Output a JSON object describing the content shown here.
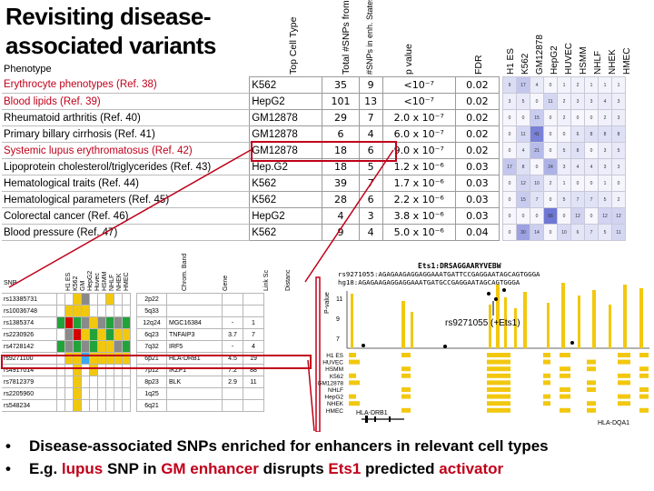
{
  "slide": {
    "title": "Revisiting disease-associated variants",
    "phenotype_header": "Phenotype",
    "column_headers": [
      "Top Cell Type",
      "Total #SNPs from Study",
      "#SNPs in enh. States 4 and 5",
      "p value",
      "FDR"
    ],
    "cell_type_headers": [
      "H1 ES",
      "K562",
      "GM12878",
      "HepG2",
      "HUVEC",
      "HSMM",
      "NHLF",
      "NHEK",
      "HMEC"
    ],
    "rows": [
      {
        "phenotype": "Erythrocyte phenotypes (Ref. 38)",
        "cell": "K562",
        "total": "35",
        "enh": "9",
        "p": "<10⁻⁷",
        "fdr": "0.02",
        "heat": [
          "9",
          "17",
          "4",
          "0",
          "1",
          "2",
          "1",
          "1",
          "1"
        ]
      },
      {
        "phenotype": "Blood lipids (Ref. 39)",
        "cell": "HepG2",
        "total": "101",
        "enh": "13",
        "p": "<10⁻⁷",
        "fdr": "0.02",
        "heat": [
          "3",
          "5",
          "0",
          "11",
          "2",
          "3",
          "3",
          "4",
          "3"
        ]
      },
      {
        "phenotype": "Rheumatoid arthritis (Ref. 40)",
        "cell": "GM12878",
        "total": "29",
        "enh": "7",
        "p": "2.0 x 10⁻⁷",
        "fdr": "0.02",
        "heat": [
          "0",
          "0",
          "15",
          "0",
          "2",
          "0",
          "0",
          "2",
          "3"
        ]
      },
      {
        "phenotype": "Primary billary cirrhosis (Ref. 41)",
        "cell": "GM12878",
        "total": "6",
        "enh": "4",
        "p": "6.0 x 10⁻⁷",
        "fdr": "0.02",
        "heat": [
          "0",
          "11",
          "41",
          "0",
          "0",
          "6",
          "8",
          "8",
          "8"
        ]
      },
      {
        "phenotype": "Systemic lupus erythromatosus (Ref. 42)",
        "cell": "GM12878",
        "total": "18",
        "enh": "6",
        "p": "9.0 x 10⁻⁷",
        "fdr": "0.02",
        "heat": [
          "0",
          "4",
          "21",
          "0",
          "5",
          "8",
          "0",
          "3",
          "5"
        ]
      },
      {
        "phenotype": "Lipoprotein cholesterol/triglycerides (Ref. 43)",
        "cell": "Hep.G2",
        "total": "18",
        "enh": "5",
        "p": "1.2 x 10⁻⁶",
        "fdr": "0.03",
        "heat": [
          "17",
          "8",
          "0",
          "24",
          "3",
          "4",
          "4",
          "3",
          "3"
        ]
      },
      {
        "phenotype": "Hematological traits (Ref. 44)",
        "cell": "K562",
        "total": "39",
        "enh": "7",
        "p": "1.7 x 10⁻⁶",
        "fdr": "0.03",
        "heat": [
          "0",
          "12",
          "10",
          "2",
          "1",
          "0",
          "0",
          "1",
          "0"
        ]
      },
      {
        "phenotype": "Hematological parameters (Ref. 45)",
        "cell": "K562",
        "total": "28",
        "enh": "6",
        "p": "2.2 x 10⁻⁶",
        "fdr": "0.03",
        "heat": [
          "0",
          "15",
          "7",
          "0",
          "5",
          "7",
          "7",
          "5",
          "2"
        ]
      },
      {
        "phenotype": "Colorectal cancer (Ref. 46)",
        "cell": "HepG2",
        "total": "4",
        "enh": "3",
        "p": "3.8 x 10⁻⁶",
        "fdr": "0.03",
        "heat": [
          "0",
          "0",
          "0",
          "66",
          "0",
          "12",
          "0",
          "12",
          "12"
        ]
      },
      {
        "phenotype": "Blood pressure (Ref. 47)",
        "cell": "K562",
        "total": "9",
        "enh": "4",
        "p": "5.0 x 10⁻⁶",
        "fdr": "0.04",
        "heat": [
          "0",
          "30",
          "14",
          "0",
          "10",
          "6",
          "7",
          "5",
          "11"
        ]
      }
    ],
    "colors": {
      "highlight_red": "#c0001a",
      "enhancer_yellow": "#f2c80f",
      "heat_blue": "#4a55c8"
    }
  },
  "snp_panel": {
    "headers": [
      "SNP",
      "H1 ES",
      "K562",
      "GM",
      "HepG2",
      "Huvec",
      "HSMM",
      "NHLF",
      "NHEK",
      "HMEC",
      "Chrom. Band",
      "Gene",
      "Link Sc",
      "Distanc"
    ],
    "rows": [
      {
        "snp": "rs13385731",
        "band": "2p22",
        "gene": "",
        "link": "",
        "dist": "",
        "colors": [
          "w",
          "w",
          "y",
          "g",
          "w",
          "w",
          "y",
          "w",
          "w"
        ]
      },
      {
        "snp": "rs10036748",
        "band": "5q33",
        "gene": "",
        "link": "",
        "dist": "",
        "colors": [
          "w",
          "y",
          "y",
          "y",
          "w",
          "w",
          "w",
          "w",
          "w"
        ]
      },
      {
        "snp": "rs1385374",
        "band": "12q24",
        "gene": "MGC16384",
        "link": "-",
        "dist": "1",
        "colors": [
          "g",
          "r",
          "g",
          "g",
          "y",
          "g",
          "g",
          "g",
          "g"
        ]
      },
      {
        "snp": "rs2230926",
        "band": "6q23",
        "gene": "TNFAIP3",
        "link": "3.7",
        "dist": "7",
        "colors": [
          "w",
          "g",
          "r",
          "y",
          "g",
          "y",
          "g",
          "y",
          "y"
        ]
      },
      {
        "snp": "rs4728142",
        "band": "7q32",
        "gene": "IRF5",
        "link": "-",
        "dist": "4",
        "colors": [
          "g",
          "g",
          "g",
          "g",
          "g",
          "y",
          "y",
          "g",
          "g"
        ]
      },
      {
        "snp": "rs9271100",
        "band": "6p21",
        "gene": "HLA-DRB1",
        "link": "4.5",
        "dist": "19",
        "colors": [
          "w",
          "y",
          "y",
          "b",
          "y",
          "y",
          "y",
          "y",
          "y"
        ]
      },
      {
        "snp": "rs4917014",
        "band": "7p12",
        "gene": "IKZF1",
        "link": "7.2",
        "dist": "88",
        "colors": [
          "w",
          "w",
          "y",
          "w",
          "y",
          "w",
          "w",
          "w",
          "w"
        ]
      },
      {
        "snp": "rs7812379",
        "band": "8p23",
        "gene": "BLK",
        "link": "2.9",
        "dist": "11",
        "colors": [
          "w",
          "w",
          "y",
          "w",
          "w",
          "w",
          "w",
          "w",
          "w"
        ]
      },
      {
        "snp": "rs2205960",
        "band": "1q25",
        "gene": "",
        "link": "",
        "dist": "",
        "colors": [
          "w",
          "w",
          "y",
          "w",
          "w",
          "w",
          "w",
          "w",
          "w"
        ]
      },
      {
        "snp": "rs548234",
        "band": "6q21",
        "gene": "",
        "link": "",
        "dist": "",
        "colors": [
          "w",
          "w",
          "y",
          "w",
          "w",
          "w",
          "w",
          "w",
          "w"
        ]
      }
    ]
  },
  "browser": {
    "motif_title": "Ets1:DRSAGGAARYVEBW",
    "seq1": "rs9271055:AGAGAAGAGGAGGAAATGATTCCGAGGAATAGCAGTGGGA",
    "seq2": "hg18:AGAGAAGAGGAGGAAATGATGCCGAGGAATAGCAGTGGGA",
    "snp_label": "rs9271055 (+Ets1)",
    "score_label": "P-value",
    "y_ticks": [
      "11",
      "9",
      "7"
    ],
    "tracks": [
      "H1 ES",
      "HUVEC",
      "HSMM",
      "K562",
      "GM12878",
      "NHLF",
      "HepG2",
      "NHEK",
      "HMEC"
    ],
    "gene_left": "HLA-DRB1",
    "gene_right": "HLA-DQA1"
  },
  "bullets": [
    [
      {
        "t": "Disease-associated SNPs enriched for enhancers in relevant cell types",
        "c": "#000000"
      }
    ],
    [
      {
        "t": "E.g. ",
        "c": "#000000"
      },
      {
        "t": "lupus",
        "c": "#c0001a"
      },
      {
        "t": " SNP in ",
        "c": "#000000"
      },
      {
        "t": "GM enhancer",
        "c": "#c0001a"
      },
      {
        "t": " disrupts ",
        "c": "#000000"
      },
      {
        "t": "Ets1",
        "c": "#c0001a"
      },
      {
        "t": " predicted ",
        "c": "#000000"
      },
      {
        "t": "activator",
        "c": "#c0001a"
      }
    ]
  ],
  "bullet_char": "•"
}
